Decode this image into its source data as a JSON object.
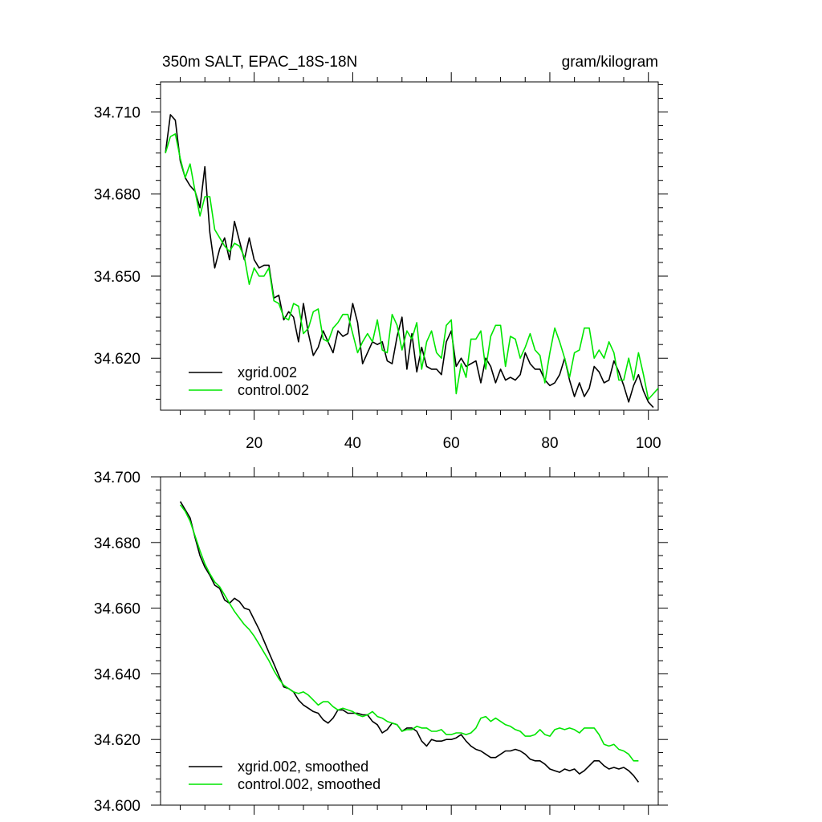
{
  "chart_data": [
    {
      "type": "line",
      "title": "350m SALT, EPAC_18S-18N",
      "units": "gram/kilogram",
      "xlim": [
        1,
        102
      ],
      "ylim": [
        34.601,
        34.721
      ],
      "xticks": [
        20,
        40,
        60,
        80,
        100
      ],
      "xtick_labels": [
        "20",
        "40",
        "60",
        "80",
        "100"
      ],
      "yticks": [
        34.71,
        34.68,
        34.65,
        34.62
      ],
      "ytick_labels": [
        "34.710",
        "34.680",
        "34.650",
        "34.620"
      ],
      "legend_position": "bottom-left",
      "series": [
        {
          "name": "xgrid.002",
          "color": "#000000",
          "x": [
            2,
            3,
            4,
            5,
            6,
            7,
            8,
            9,
            10,
            11,
            12,
            13,
            14,
            15,
            16,
            17,
            18,
            19,
            20,
            21,
            22,
            23,
            24,
            25,
            26,
            27,
            28,
            29,
            30,
            31,
            32,
            33,
            34,
            35,
            36,
            37,
            38,
            39,
            40,
            41,
            42,
            43,
            44,
            45,
            46,
            47,
            48,
            49,
            50,
            51,
            52,
            53,
            54,
            55,
            56,
            57,
            58,
            59,
            60,
            61,
            62,
            63,
            64,
            65,
            66,
            67,
            68,
            69,
            70,
            71,
            72,
            73,
            74,
            75,
            76,
            77,
            78,
            79,
            80,
            81,
            82,
            83,
            84,
            85,
            86,
            87,
            88,
            89,
            90,
            91,
            92,
            93,
            94,
            95,
            96,
            97,
            98,
            99,
            100,
            101
          ],
          "values": [
            34.695,
            34.709,
            34.707,
            34.692,
            34.686,
            34.683,
            34.681,
            34.675,
            34.69,
            34.666,
            34.653,
            34.66,
            34.664,
            34.656,
            34.67,
            34.663,
            34.656,
            34.664,
            34.656,
            34.653,
            34.654,
            34.654,
            34.642,
            34.643,
            34.634,
            34.637,
            34.635,
            34.626,
            34.64,
            34.629,
            34.621,
            34.624,
            34.63,
            34.626,
            34.622,
            34.63,
            34.628,
            34.629,
            34.64,
            34.633,
            34.618,
            34.622,
            34.626,
            34.625,
            34.626,
            34.619,
            34.618,
            34.628,
            34.635,
            34.616,
            34.629,
            34.615,
            34.624,
            34.617,
            34.616,
            34.616,
            34.614,
            34.626,
            34.63,
            34.617,
            34.62,
            34.617,
            34.618,
            34.619,
            34.611,
            34.62,
            34.617,
            34.611,
            34.616,
            34.612,
            34.613,
            34.612,
            34.614,
            34.622,
            34.618,
            34.616,
            34.616,
            34.612,
            34.61,
            34.611,
            34.614,
            34.62,
            34.612,
            34.606,
            34.611,
            34.606,
            34.609,
            34.617,
            34.615,
            34.611,
            34.612,
            34.619,
            34.615,
            34.61,
            34.604,
            34.61,
            34.614,
            34.608,
            34.604,
            34.602
          ]
        },
        {
          "name": "control.002",
          "color": "#00e600",
          "x": [
            2,
            3,
            4,
            5,
            6,
            7,
            8,
            9,
            10,
            11,
            12,
            13,
            14,
            15,
            16,
            17,
            18,
            19,
            20,
            21,
            22,
            23,
            24,
            25,
            26,
            27,
            28,
            29,
            30,
            31,
            32,
            33,
            34,
            35,
            36,
            37,
            38,
            39,
            40,
            41,
            42,
            43,
            44,
            45,
            46,
            47,
            48,
            49,
            50,
            51,
            52,
            53,
            54,
            55,
            56,
            57,
            58,
            59,
            60,
            61,
            62,
            63,
            64,
            65,
            66,
            67,
            68,
            69,
            70,
            71,
            72,
            73,
            74,
            75,
            76,
            77,
            78,
            79,
            80,
            81,
            82,
            83,
            84,
            85,
            86,
            87,
            88,
            89,
            90,
            91,
            92,
            93,
            94,
            95,
            96,
            97,
            98,
            99,
            100,
            101,
            102
          ],
          "values": [
            34.695,
            34.701,
            34.702,
            34.693,
            34.686,
            34.691,
            34.681,
            34.672,
            34.679,
            34.679,
            34.667,
            34.664,
            34.661,
            34.659,
            34.662,
            34.661,
            34.657,
            34.647,
            34.653,
            34.65,
            34.65,
            34.653,
            34.641,
            34.64,
            34.635,
            34.634,
            34.64,
            34.639,
            34.629,
            34.631,
            34.637,
            34.638,
            34.627,
            34.626,
            34.631,
            34.633,
            34.636,
            34.636,
            34.629,
            34.622,
            34.626,
            34.629,
            34.626,
            34.634,
            34.623,
            34.622,
            34.636,
            34.632,
            34.623,
            34.63,
            34.627,
            34.633,
            34.616,
            34.626,
            34.63,
            34.622,
            34.62,
            34.632,
            34.634,
            34.607,
            34.618,
            34.613,
            34.627,
            34.627,
            34.63,
            34.616,
            34.628,
            34.632,
            34.632,
            34.617,
            34.628,
            34.627,
            34.62,
            34.624,
            34.629,
            34.623,
            34.621,
            34.611,
            34.622,
            34.631,
            34.626,
            34.62,
            34.613,
            34.622,
            34.623,
            34.631,
            34.631,
            34.62,
            34.623,
            34.62,
            34.626,
            34.622,
            34.612,
            34.612,
            34.62,
            34.612,
            34.622,
            34.614,
            34.605,
            34.607,
            34.609
          ]
        }
      ]
    },
    {
      "type": "line",
      "xlim": [
        1,
        102
      ],
      "ylim": [
        34.6,
        34.7
      ],
      "xticks": [
        20,
        40,
        60,
        80,
        100
      ],
      "yticks": [
        34.7,
        34.68,
        34.66,
        34.64,
        34.62,
        34.6
      ],
      "ytick_labels": [
        "34.700",
        "34.680",
        "34.660",
        "34.640",
        "34.620",
        "34.600"
      ],
      "legend_position": "bottom-left",
      "series": [
        {
          "name": "xgrid.002, smoothed",
          "color": "#000000",
          "x": [
            5,
            6,
            7,
            8,
            9,
            10,
            11,
            12,
            13,
            14,
            15,
            16,
            17,
            18,
            19,
            20,
            21,
            22,
            23,
            24,
            25,
            26,
            27,
            28,
            29,
            30,
            31,
            32,
            33,
            34,
            35,
            36,
            37,
            38,
            39,
            40,
            41,
            42,
            43,
            44,
            45,
            46,
            47,
            48,
            49,
            50,
            51,
            52,
            53,
            54,
            55,
            56,
            57,
            58,
            59,
            60,
            61,
            62,
            63,
            64,
            65,
            66,
            67,
            68,
            69,
            70,
            71,
            72,
            73,
            74,
            75,
            76,
            77,
            78,
            79,
            80,
            81,
            82,
            83,
            84,
            85,
            86,
            87,
            88,
            89,
            90,
            91,
            92,
            93,
            94,
            95,
            96,
            97,
            98
          ],
          "values": [
            34.6925,
            34.69,
            34.6875,
            34.6815,
            34.676,
            34.6725,
            34.67,
            34.667,
            34.666,
            34.6625,
            34.6615,
            34.663,
            34.662,
            34.66,
            34.6595,
            34.6565,
            34.6535,
            34.65,
            34.6465,
            34.643,
            34.6395,
            34.636,
            34.6355,
            34.6345,
            34.632,
            34.6305,
            34.6295,
            34.6285,
            34.628,
            34.626,
            34.625,
            34.6265,
            34.629,
            34.629,
            34.628,
            34.628,
            34.628,
            34.6275,
            34.6275,
            34.6255,
            34.6245,
            34.622,
            34.623,
            34.625,
            34.6245,
            34.6225,
            34.6235,
            34.6235,
            34.6225,
            34.6195,
            34.618,
            34.62,
            34.6195,
            34.6195,
            34.62,
            34.62,
            34.6205,
            34.6215,
            34.6195,
            34.618,
            34.617,
            34.6165,
            34.6155,
            34.6145,
            34.6145,
            34.6155,
            34.6165,
            34.6165,
            34.617,
            34.6165,
            34.6155,
            34.614,
            34.6135,
            34.6135,
            34.6125,
            34.611,
            34.6105,
            34.61,
            34.611,
            34.6105,
            34.611,
            34.6095,
            34.6105,
            34.612,
            34.6135,
            34.6135,
            34.612,
            34.611,
            34.6115,
            34.611,
            34.6115,
            34.6105,
            34.609,
            34.607
          ]
        },
        {
          "name": "control.002, smoothed",
          "color": "#00e600",
          "x": [
            5,
            6,
            7,
            8,
            9,
            10,
            11,
            12,
            13,
            14,
            15,
            16,
            17,
            18,
            19,
            20,
            21,
            22,
            23,
            24,
            25,
            26,
            27,
            28,
            29,
            30,
            31,
            32,
            33,
            34,
            35,
            36,
            37,
            38,
            39,
            40,
            41,
            42,
            43,
            44,
            45,
            46,
            47,
            48,
            49,
            50,
            51,
            52,
            53,
            54,
            55,
            56,
            57,
            58,
            59,
            60,
            61,
            62,
            63,
            64,
            65,
            66,
            67,
            68,
            69,
            70,
            71,
            72,
            73,
            74,
            75,
            76,
            77,
            78,
            79,
            80,
            81,
            82,
            83,
            84,
            85,
            86,
            87,
            88,
            89,
            90,
            91,
            92,
            93,
            94,
            95,
            96,
            97,
            98
          ],
          "values": [
            34.6915,
            34.6895,
            34.6865,
            34.682,
            34.6775,
            34.6735,
            34.6705,
            34.668,
            34.6665,
            34.664,
            34.6615,
            34.659,
            34.657,
            34.655,
            34.6535,
            34.6515,
            34.649,
            34.6465,
            34.644,
            34.641,
            34.6385,
            34.6365,
            34.6355,
            34.6345,
            34.634,
            34.6345,
            34.6335,
            34.632,
            34.6305,
            34.6315,
            34.6315,
            34.63,
            34.629,
            34.6295,
            34.629,
            34.6285,
            34.6275,
            34.627,
            34.6275,
            34.6285,
            34.627,
            34.6265,
            34.6255,
            34.625,
            34.6245,
            34.6225,
            34.623,
            34.623,
            34.624,
            34.6235,
            34.6235,
            34.6225,
            34.6225,
            34.623,
            34.6215,
            34.6215,
            34.622,
            34.622,
            34.6215,
            34.622,
            34.6235,
            34.6265,
            34.627,
            34.6255,
            34.6265,
            34.6255,
            34.6245,
            34.624,
            34.623,
            34.6225,
            34.621,
            34.621,
            34.6215,
            34.623,
            34.6215,
            34.621,
            34.623,
            34.6235,
            34.623,
            34.6235,
            34.623,
            34.622,
            34.6235,
            34.6235,
            34.6235,
            34.6215,
            34.6185,
            34.618,
            34.6185,
            34.617,
            34.6165,
            34.6155,
            34.6135,
            34.6135
          ]
        }
      ]
    }
  ]
}
